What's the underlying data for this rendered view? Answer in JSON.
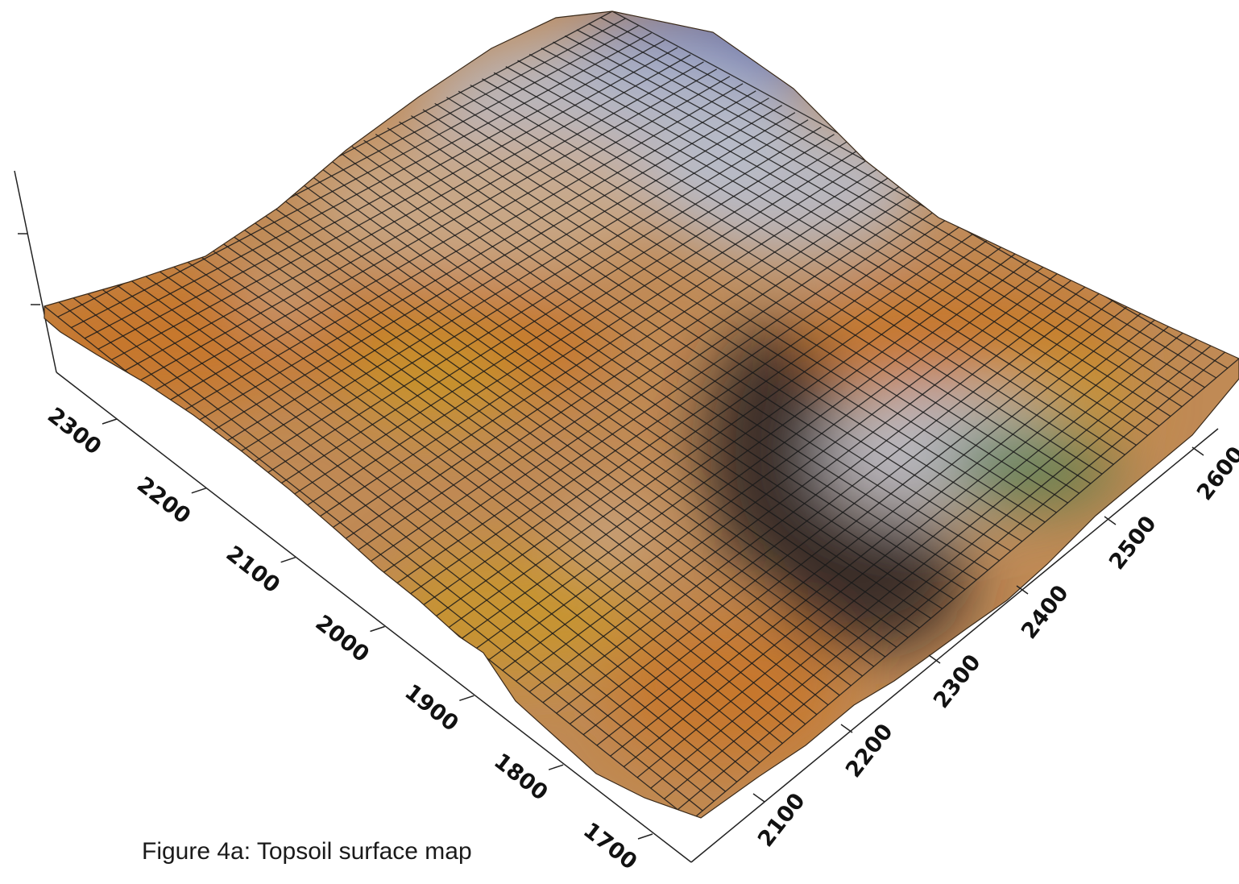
{
  "caption": "Figure 4a: Topsoil surface map",
  "chart_data": {
    "type": "surface3d",
    "title": "",
    "left_axis": {
      "ticks": [
        "1700",
        "1800",
        "1900",
        "2000",
        "2100",
        "2200",
        "2300"
      ]
    },
    "right_axis": {
      "ticks": [
        "2100",
        "2200",
        "2300",
        "2400",
        "2500",
        "2600"
      ]
    },
    "vertical_axis": {
      "ticks": [
        "",
        ""
      ]
    },
    "grid": true,
    "colors": {
      "high": "#2f56b8",
      "mid_high": "#b8bccb",
      "mid": "#c9a889",
      "low_orange": "#c7762a",
      "low_gold": "#c8952e",
      "low_dark": "#2c2622",
      "low_green": "#587a45",
      "mesh": "#1a1a1a"
    }
  }
}
